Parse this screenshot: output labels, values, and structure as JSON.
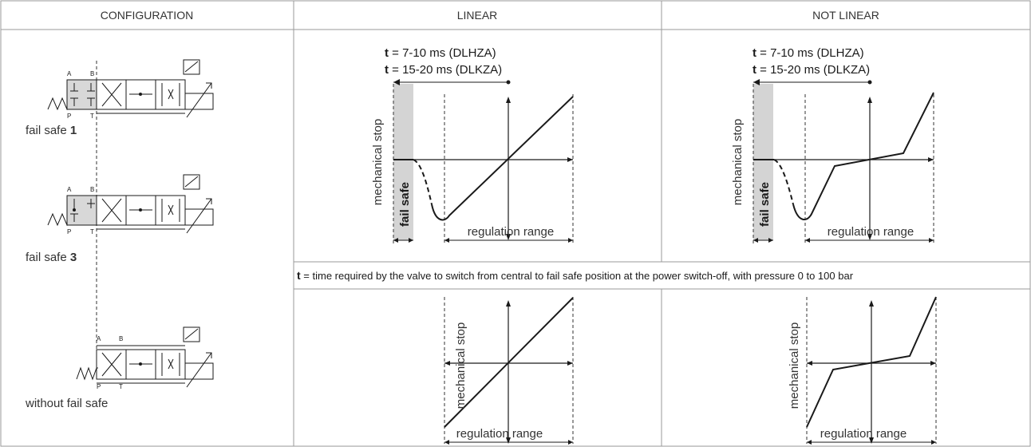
{
  "headers": {
    "configuration": "CONFIGURATION",
    "linear": "LINEAR",
    "not_linear": "NOT LINEAR"
  },
  "configs": [
    {
      "label_prefix": "fail safe ",
      "label_number": "1"
    },
    {
      "label_prefix": "fail safe ",
      "label_number": "3"
    },
    {
      "label_prefix": "without fail safe",
      "label_number": ""
    }
  ],
  "ports": {
    "a": "A",
    "b": "B",
    "p": "P",
    "t": "T"
  },
  "timing": {
    "t_symbol": "t",
    "line1": " = 7-10 ms (DLHZA)",
    "line2": " = 15-20 ms (DLKZA)"
  },
  "labels": {
    "mechanical_stop": "mechanical stop",
    "fail_safe": "fail safe",
    "regulation_range": "regulation range"
  },
  "note": {
    "t_symbol": "t",
    "text": " = time required by the valve to switch from central to fail safe position at the power switch-off, with pressure 0 to 100 bar"
  },
  "colors": {
    "fail_safe_band": "#d4d4d4",
    "valve_center_fill": "#d8d8d8",
    "line": "#1a1a1a",
    "grid": "#9a9a9a"
  },
  "icons": [
    "solenoid-icon",
    "spring-icon",
    "lvdt-transducer-icon"
  ]
}
